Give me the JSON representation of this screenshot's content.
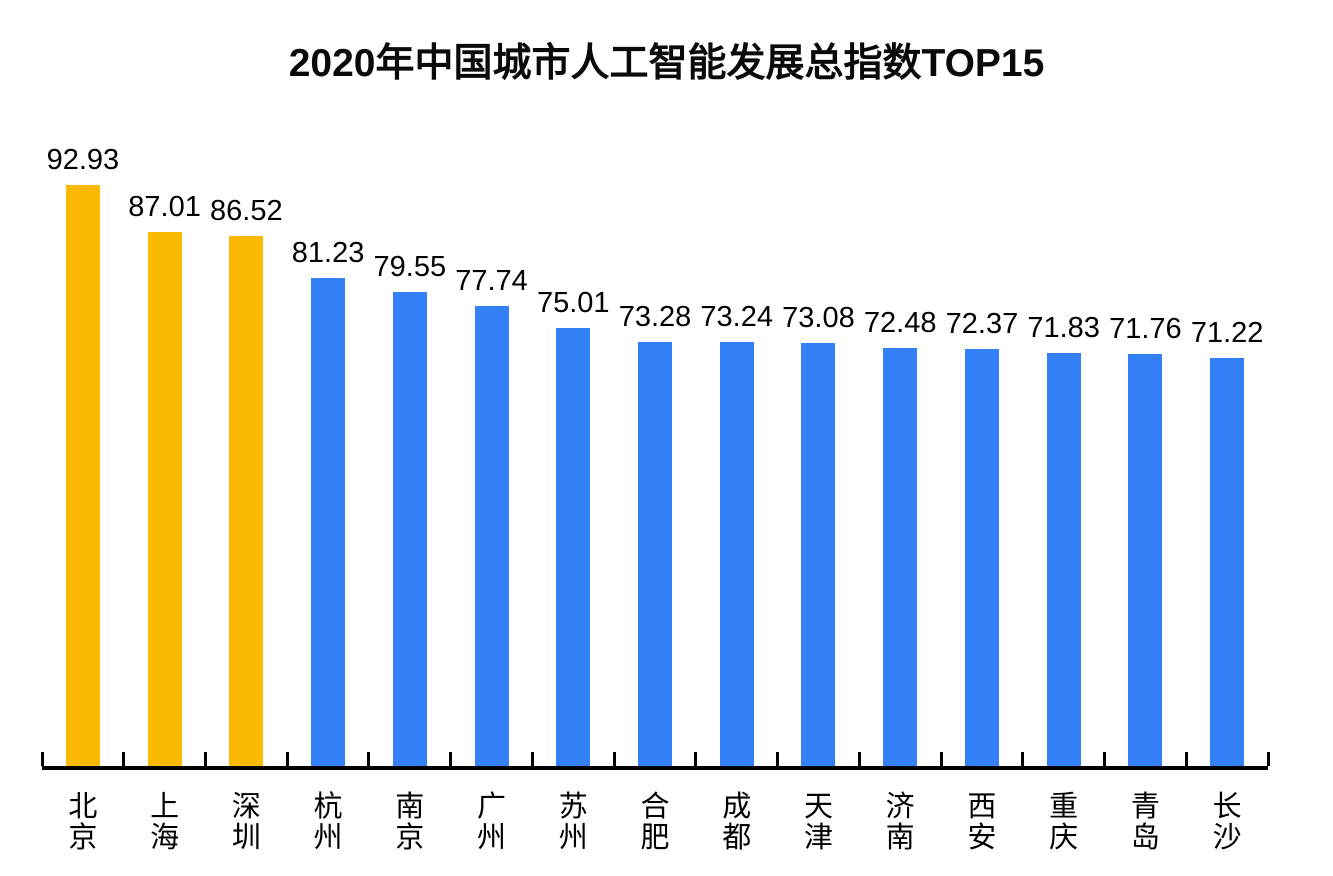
{
  "chart_data": {
    "type": "bar",
    "title": "2020年中国城市人工智能发展总指数TOP15",
    "categories": [
      "北京",
      "上海",
      "深圳",
      "杭州",
      "南京",
      "广州",
      "苏州",
      "合肥",
      "成都",
      "天津",
      "济南",
      "西安",
      "重庆",
      "青岛",
      "长沙"
    ],
    "values": [
      92.93,
      87.01,
      86.52,
      81.23,
      79.55,
      77.74,
      75.01,
      73.28,
      73.24,
      73.08,
      72.48,
      72.37,
      71.83,
      71.76,
      71.22
    ],
    "value_labels": [
      "92.93",
      "87.01",
      "86.52",
      "81.23",
      "79.55",
      "77.74",
      "75.01",
      "73.28",
      "73.24",
      "73.08",
      "72.48",
      "72.37",
      "71.83",
      "71.76",
      "71.22"
    ],
    "highlight_indices": [
      0,
      1,
      2
    ],
    "colors": {
      "highlight_bar": "#FCBA04",
      "bar": "#3380F7",
      "axis": "#000000",
      "text": "#000000"
    },
    "xlabel": "",
    "ylabel": "",
    "ylim": [
      20,
      100
    ],
    "grid": false,
    "legend": "none",
    "value_label_position": "above-bar",
    "category_label_orientation": "vertical"
  }
}
